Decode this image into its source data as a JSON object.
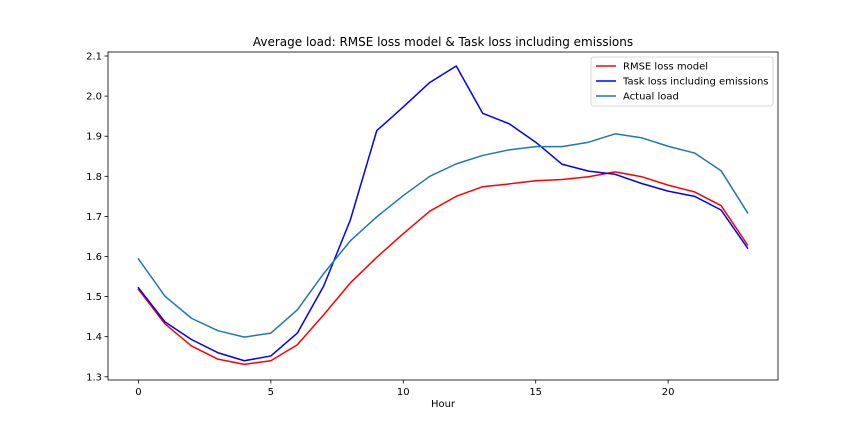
{
  "chart_data": {
    "type": "line",
    "title": "Average load: RMSE loss model & Task loss including emissions",
    "xlabel": "Hour",
    "ylabel": "",
    "xlim": [
      -1.15,
      24.15
    ],
    "ylim": [
      1.292,
      2.11
    ],
    "xticks": [
      0,
      5,
      10,
      15,
      20
    ],
    "yticks": [
      1.3,
      1.4,
      1.5,
      1.6,
      1.7,
      1.8,
      1.9,
      2.0,
      2.1
    ],
    "ytick_labels": [
      "1.3",
      "1.4",
      "1.5",
      "1.6",
      "1.7",
      "1.8",
      "1.9",
      "2.0",
      "2.1"
    ],
    "grid": false,
    "legend_position": "top-right",
    "x": [
      0,
      1,
      2,
      3,
      4,
      5,
      6,
      7,
      8,
      9,
      10,
      11,
      12,
      13,
      14,
      15,
      16,
      17,
      18,
      19,
      20,
      21,
      22,
      23
    ],
    "series": [
      {
        "name": "RMSE loss model",
        "color": "#ff0000",
        "values": [
          1.518,
          1.432,
          1.377,
          1.344,
          1.331,
          1.34,
          1.38,
          1.455,
          1.534,
          1.598,
          1.657,
          1.713,
          1.75,
          1.774,
          1.781,
          1.789,
          1.792,
          1.799,
          1.811,
          1.799,
          1.778,
          1.761,
          1.727,
          1.629
        ]
      },
      {
        "name": "Task loss including emissions",
        "color": "#0000ff",
        "values": [
          1.522,
          1.437,
          1.393,
          1.36,
          1.34,
          1.352,
          1.409,
          1.527,
          1.691,
          1.914,
          1.973,
          2.034,
          2.075,
          1.957,
          1.931,
          1.885,
          1.83,
          1.813,
          1.805,
          1.782,
          1.763,
          1.75,
          1.716,
          1.621
        ]
      },
      {
        "name": "Actual load",
        "color": "#1f77b4",
        "values": [
          1.594,
          1.501,
          1.446,
          1.415,
          1.399,
          1.409,
          1.467,
          1.558,
          1.639,
          1.699,
          1.752,
          1.8,
          1.831,
          1.852,
          1.866,
          1.874,
          1.874,
          1.885,
          1.906,
          1.896,
          1.875,
          1.858,
          1.814,
          1.709
        ]
      }
    ]
  }
}
